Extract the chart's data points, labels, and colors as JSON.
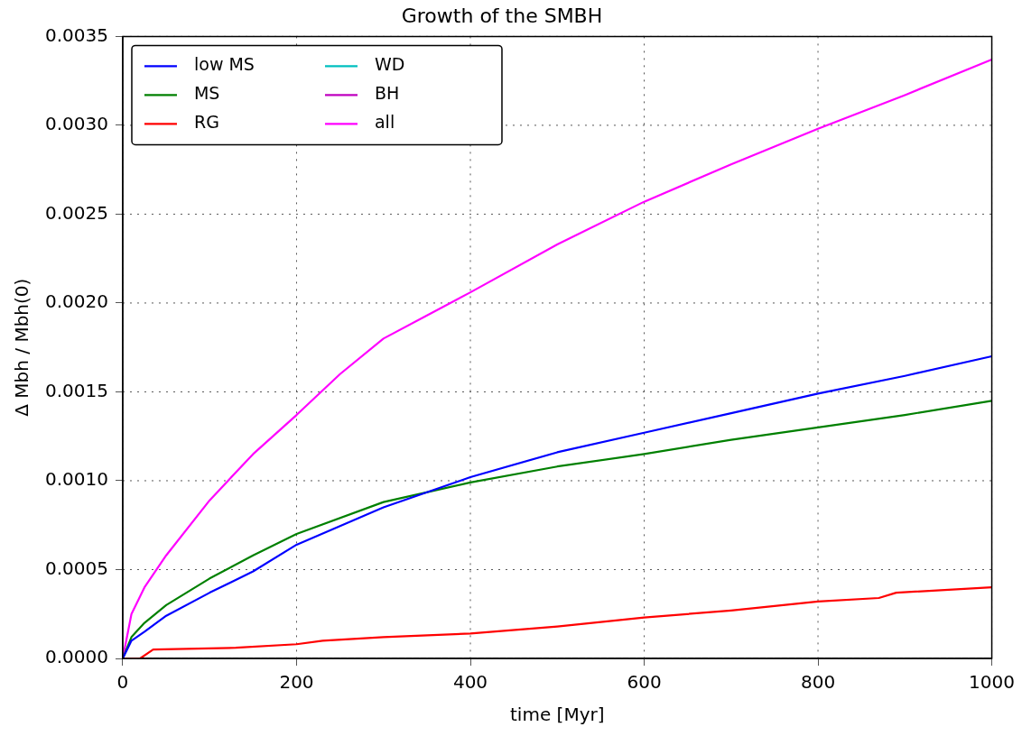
{
  "chart_data": {
    "type": "line",
    "title": "Growth of the SMBH",
    "xlabel": "time [Myr]",
    "ylabel": "Δ Mbh / Mbh(0)",
    "xlim": [
      0,
      1000
    ],
    "xticks": [
      0,
      200,
      400,
      600,
      800,
      1000
    ],
    "ylim": [
      0,
      0.0035
    ],
    "yticks": [
      {
        "value": 0,
        "label": "0.0000"
      },
      {
        "value": 0.0005,
        "label": "0.0005"
      },
      {
        "value": 0.001,
        "label": "0.0010"
      },
      {
        "value": 0.0015,
        "label": "0.0015"
      },
      {
        "value": 0.002,
        "label": "0.0020"
      },
      {
        "value": 0.0025,
        "label": "0.0025"
      },
      {
        "value": 0.003,
        "label": "0.0030"
      },
      {
        "value": 0.0035,
        "label": "0.0035"
      }
    ],
    "grid": true,
    "legend": "top left",
    "marker": "none",
    "line_style": "solid",
    "series": [
      {
        "name": "low MS",
        "color": "#0000ff",
        "x": [
          0,
          10,
          25,
          50,
          100,
          150,
          200,
          300,
          400,
          500,
          600,
          700,
          800,
          900,
          1000
        ],
        "values": [
          0,
          0.0001,
          0.00015,
          0.00024,
          0.00037,
          0.00049,
          0.00064,
          0.00085,
          0.00102,
          0.00116,
          0.00127,
          0.00138,
          0.00149,
          0.00159,
          0.0017
        ]
      },
      {
        "name": "MS",
        "color": "#008000",
        "x": [
          0,
          10,
          25,
          50,
          100,
          150,
          200,
          300,
          400,
          500,
          600,
          700,
          800,
          900,
          1000
        ],
        "values": [
          0,
          0.00012,
          0.0002,
          0.0003,
          0.00045,
          0.00058,
          0.0007,
          0.00088,
          0.00099,
          0.00108,
          0.00115,
          0.00123,
          0.0013,
          0.00137,
          0.00145
        ]
      },
      {
        "name": "RG",
        "color": "#ff0000",
        "x": [
          0,
          20,
          35,
          130,
          200,
          230,
          300,
          400,
          500,
          600,
          700,
          800,
          870,
          890,
          1000
        ],
        "values": [
          0,
          0,
          5e-05,
          6e-05,
          8e-05,
          0.0001,
          0.00012,
          0.00014,
          0.00018,
          0.00023,
          0.00027,
          0.00032,
          0.00034,
          0.00037,
          0.0004
        ]
      },
      {
        "name": "WD",
        "color": "#00bfbf"
      },
      {
        "name": "BH",
        "color": "#bf00bf"
      },
      {
        "name": "all",
        "color": "#ff00ff",
        "x": [
          0,
          10,
          25,
          50,
          100,
          150,
          200,
          250,
          300,
          350,
          400,
          500,
          600,
          700,
          800,
          900,
          1000
        ],
        "values": [
          0,
          0.00025,
          0.0004,
          0.00058,
          0.00089,
          0.00115,
          0.00137,
          0.0016,
          0.0018,
          0.00193,
          0.00206,
          0.00233,
          0.00257,
          0.00278,
          0.00298,
          0.00317,
          0.00337
        ]
      }
    ]
  }
}
